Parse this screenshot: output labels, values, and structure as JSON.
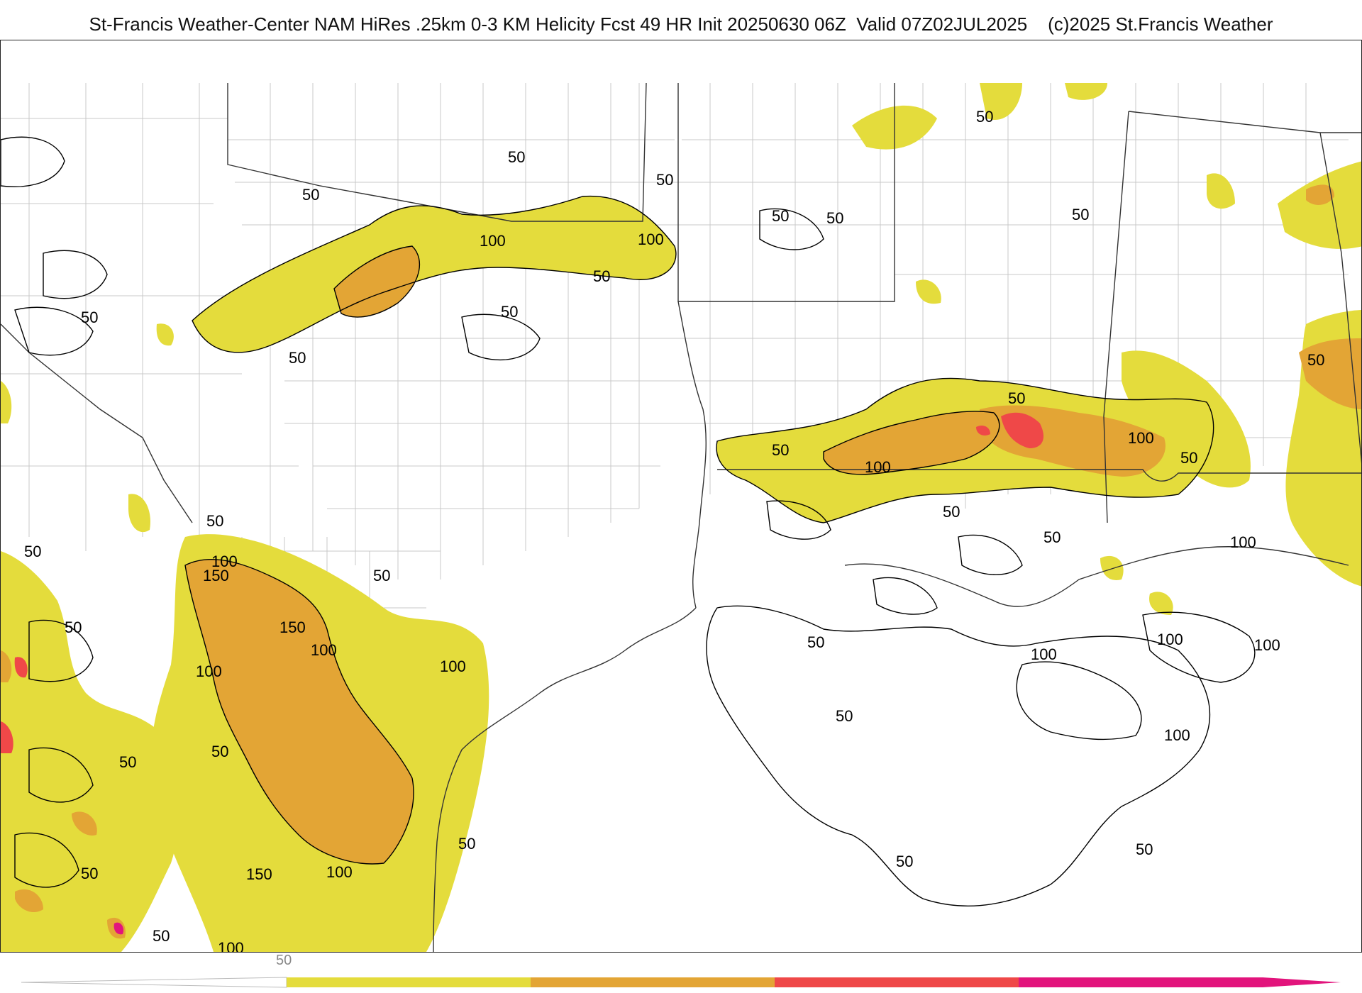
{
  "title": "St-Francis Weather-Center NAM HiRes .25km 0-3 KM Helicity Fcst 49 HR Init 20250630 06Z  Valid 07Z02JUL2025    (c)2025 St.Francis Weather",
  "contour_labels": [
    "50",
    "100",
    "150"
  ],
  "colorbar": {
    "tick_label": "50",
    "bands": [
      {
        "min": 50,
        "max": 100,
        "color": "#e4dc3c"
      },
      {
        "min": 100,
        "max": 150,
        "color": "#e3a535"
      },
      {
        "min": 150,
        "max": 200,
        "color": "#ef4848"
      },
      {
        "min": 200,
        "max": 250,
        "color": "#e2147c"
      }
    ]
  }
}
